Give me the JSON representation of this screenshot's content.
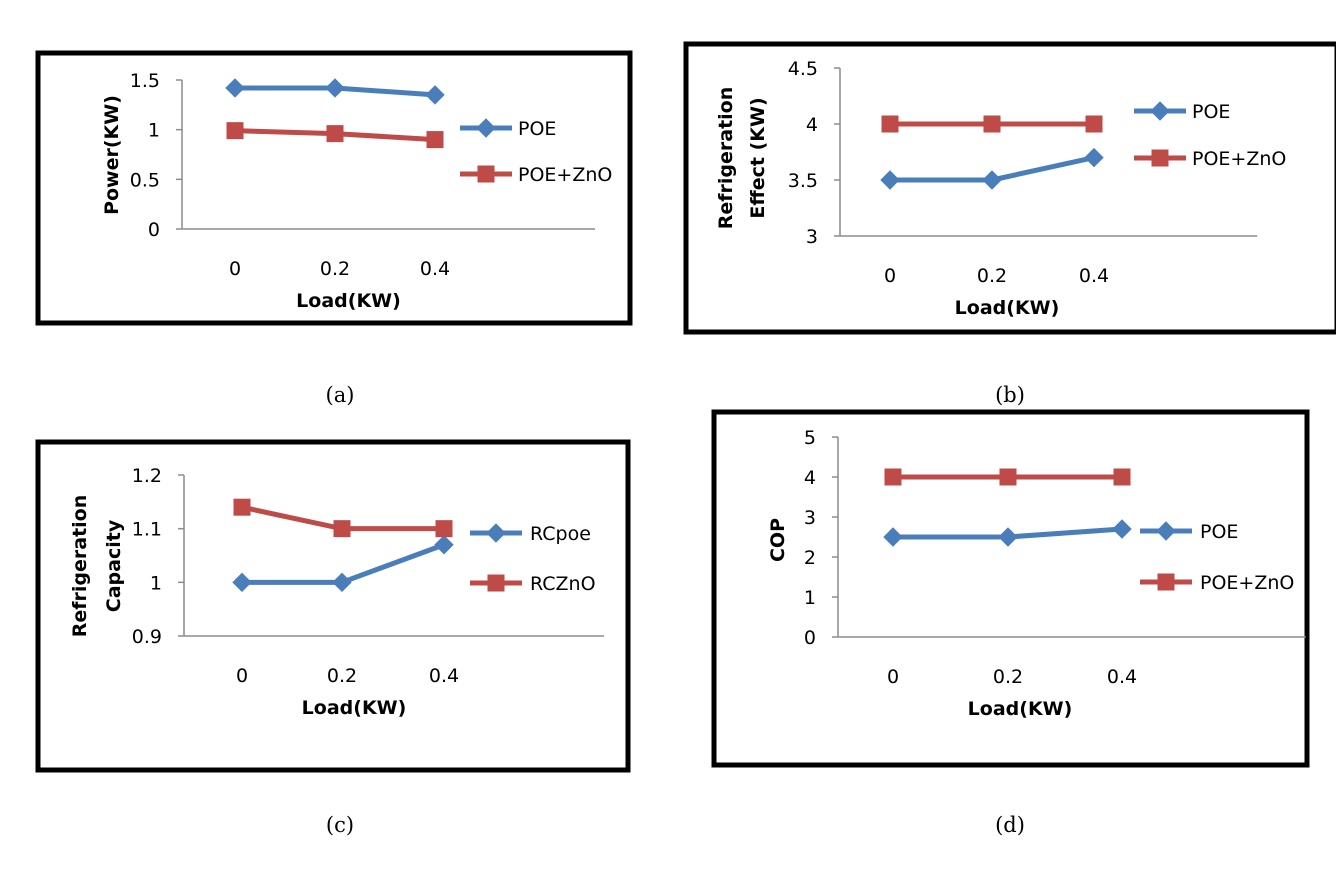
{
  "chart_data": [
    {
      "type": "line",
      "caption": "(a)",
      "x": [
        "0",
        "0.2",
        "0.4"
      ],
      "xlabel": "Load(KW)",
      "ylabel": "Power(KW)",
      "ylim": [
        0,
        1.5
      ],
      "yticks": [
        "0",
        "0.5",
        "1",
        "1.5"
      ],
      "grid": false,
      "legend_position": "right",
      "series": [
        {
          "name": "POE",
          "values": [
            1.42,
            1.42,
            1.35
          ],
          "color": "#4a7ebb",
          "marker": "diamond"
        },
        {
          "name": "POE+ZnO",
          "values": [
            0.99,
            0.96,
            0.9
          ],
          "color": "#be4b48",
          "marker": "square"
        }
      ]
    },
    {
      "type": "line",
      "caption": "(b)",
      "x": [
        "0",
        "0.2",
        "0.4"
      ],
      "xlabel": "Load(KW)",
      "ylabel": "Refrigeration Effect (KW)",
      "ylim": [
        3,
        4.5
      ],
      "yticks": [
        "3",
        "3.5",
        "4",
        "4.5"
      ],
      "grid": false,
      "legend_position": "right",
      "series": [
        {
          "name": "POE",
          "values": [
            3.5,
            3.5,
            3.7
          ],
          "color": "#4a7ebb",
          "marker": "diamond"
        },
        {
          "name": "POE+ZnO",
          "values": [
            4.0,
            4.0,
            4.0
          ],
          "color": "#be4b48",
          "marker": "square"
        }
      ]
    },
    {
      "type": "line",
      "caption": "(c)",
      "x": [
        "0",
        "0.2",
        "0.4"
      ],
      "xlabel": "Load(KW)",
      "ylabel": "Refrigeration Capacity",
      "ylim": [
        0.9,
        1.2
      ],
      "yticks": [
        "0.9",
        "1",
        "1.1",
        "1.2"
      ],
      "grid": false,
      "legend_position": "right",
      "series": [
        {
          "name": "RCpoe",
          "values": [
            1.0,
            1.0,
            1.07
          ],
          "color": "#4a7ebb",
          "marker": "diamond"
        },
        {
          "name": "RCZnO",
          "values": [
            1.14,
            1.1,
            1.1
          ],
          "color": "#be4b48",
          "marker": "square"
        }
      ]
    },
    {
      "type": "line",
      "caption": "(d)",
      "x": [
        "0",
        "0.2",
        "0.4"
      ],
      "xlabel": "Load(KW)",
      "ylabel": "COP",
      "ylim": [
        0,
        5
      ],
      "yticks": [
        "0",
        "1",
        "2",
        "3",
        "4",
        "5"
      ],
      "grid": false,
      "legend_position": "right",
      "series": [
        {
          "name": "POE",
          "values": [
            2.5,
            2.5,
            2.7
          ],
          "color": "#4a7ebb",
          "marker": "diamond"
        },
        {
          "name": "POE+ZnO",
          "values": [
            4.0,
            4.0,
            4.0
          ],
          "color": "#be4b48",
          "marker": "square"
        }
      ]
    }
  ]
}
